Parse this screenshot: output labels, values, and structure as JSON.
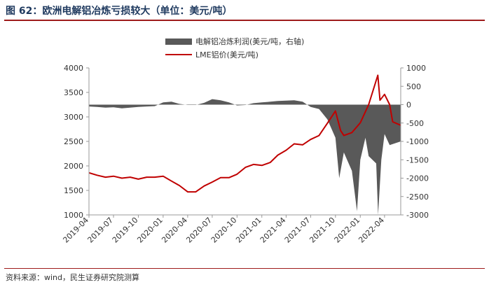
{
  "figure": {
    "title": "图 62：欧洲电解铝冶炼亏损较大（单位：美元/吨）",
    "source": "资料来源：wind，民生证券研究院测算"
  },
  "chart_data": {
    "type": "line+area",
    "x_tick_labels": [
      "2019-04",
      "2019-07",
      "2019-10",
      "2020-01",
      "2020-04",
      "2020-07",
      "2020-10",
      "2021-01",
      "2021-04",
      "2021-07",
      "2021-10",
      "2022-01",
      "2022-04"
    ],
    "x_range": [
      "2019-04-01",
      "2022-05-31"
    ],
    "y_left": {
      "range": [
        1000,
        4000
      ],
      "ticks": [
        1000,
        1500,
        2000,
        2500,
        3000,
        3500,
        4000
      ]
    },
    "y_right": {
      "range": [
        -3000,
        1000
      ],
      "ticks": [
        -3000,
        -2500,
        -2000,
        -1500,
        -1000,
        -500,
        0,
        500,
        1000
      ]
    },
    "grid": false,
    "legend_position": "top-center",
    "series": [
      {
        "name": "电解铝冶炼利润(美元/吨，右轴)",
        "kind": "area",
        "axis": "right",
        "color": "#595959",
        "points": [
          [
            "2019-04-01",
            -50
          ],
          [
            "2019-05-01",
            -60
          ],
          [
            "2019-06-01",
            -80
          ],
          [
            "2019-07-01",
            -70
          ],
          [
            "2019-08-01",
            -100
          ],
          [
            "2019-09-01",
            -80
          ],
          [
            "2019-10-01",
            -60
          ],
          [
            "2019-11-01",
            -50
          ],
          [
            "2019-12-01",
            -40
          ],
          [
            "2020-01-01",
            60
          ],
          [
            "2020-02-01",
            80
          ],
          [
            "2020-03-01",
            20
          ],
          [
            "2020-04-01",
            -10
          ],
          [
            "2020-05-01",
            -10
          ],
          [
            "2020-06-01",
            50
          ],
          [
            "2020-07-01",
            150
          ],
          [
            "2020-08-01",
            120
          ],
          [
            "2020-09-01",
            60
          ],
          [
            "2020-10-01",
            -20
          ],
          [
            "2020-11-01",
            -10
          ],
          [
            "2020-12-01",
            40
          ],
          [
            "2021-01-01",
            60
          ],
          [
            "2021-02-01",
            80
          ],
          [
            "2021-03-01",
            100
          ],
          [
            "2021-04-01",
            110
          ],
          [
            "2021-05-01",
            120
          ],
          [
            "2021-06-01",
            80
          ],
          [
            "2021-07-01",
            -60
          ],
          [
            "2021-08-01",
            -120
          ],
          [
            "2021-09-01",
            -400
          ],
          [
            "2021-10-01",
            -900
          ],
          [
            "2021-10-15",
            -2000
          ],
          [
            "2021-11-01",
            -1300
          ],
          [
            "2021-12-01",
            -1800
          ],
          [
            "2021-12-20",
            -2900
          ],
          [
            "2022-01-01",
            -1500
          ],
          [
            "2022-01-20",
            -900
          ],
          [
            "2022-02-01",
            -1400
          ],
          [
            "2022-03-01",
            -1600
          ],
          [
            "2022-03-08",
            -3000
          ],
          [
            "2022-03-20",
            -1500
          ],
          [
            "2022-04-01",
            -800
          ],
          [
            "2022-04-20",
            -1100
          ],
          [
            "2022-05-31",
            -1000
          ]
        ]
      },
      {
        "name": "LME铝价(美元/吨)",
        "kind": "line",
        "axis": "left",
        "color": "#c00000",
        "points": [
          [
            "2019-04-01",
            1860
          ],
          [
            "2019-05-01",
            1810
          ],
          [
            "2019-06-01",
            1770
          ],
          [
            "2019-07-01",
            1790
          ],
          [
            "2019-08-01",
            1750
          ],
          [
            "2019-09-01",
            1770
          ],
          [
            "2019-10-01",
            1730
          ],
          [
            "2019-11-01",
            1770
          ],
          [
            "2019-12-01",
            1770
          ],
          [
            "2020-01-01",
            1790
          ],
          [
            "2020-02-01",
            1690
          ],
          [
            "2020-03-01",
            1600
          ],
          [
            "2020-04-01",
            1470
          ],
          [
            "2020-05-01",
            1470
          ],
          [
            "2020-06-01",
            1590
          ],
          [
            "2020-07-01",
            1670
          ],
          [
            "2020-08-01",
            1760
          ],
          [
            "2020-09-01",
            1760
          ],
          [
            "2020-10-01",
            1830
          ],
          [
            "2020-11-01",
            1970
          ],
          [
            "2020-12-01",
            2030
          ],
          [
            "2021-01-01",
            2010
          ],
          [
            "2021-02-01",
            2070
          ],
          [
            "2021-03-01",
            2220
          ],
          [
            "2021-04-01",
            2320
          ],
          [
            "2021-05-01",
            2450
          ],
          [
            "2021-06-01",
            2430
          ],
          [
            "2021-07-01",
            2540
          ],
          [
            "2021-08-01",
            2620
          ],
          [
            "2021-09-01",
            2870
          ],
          [
            "2021-10-01",
            3120
          ],
          [
            "2021-10-20",
            2720
          ],
          [
            "2021-11-01",
            2620
          ],
          [
            "2021-12-01",
            2680
          ],
          [
            "2022-01-01",
            2880
          ],
          [
            "2022-02-01",
            3250
          ],
          [
            "2022-03-07",
            3850
          ],
          [
            "2022-03-15",
            3340
          ],
          [
            "2022-04-01",
            3460
          ],
          [
            "2022-04-20",
            3250
          ],
          [
            "2022-05-01",
            2900
          ],
          [
            "2022-05-31",
            2830
          ]
        ]
      }
    ]
  }
}
